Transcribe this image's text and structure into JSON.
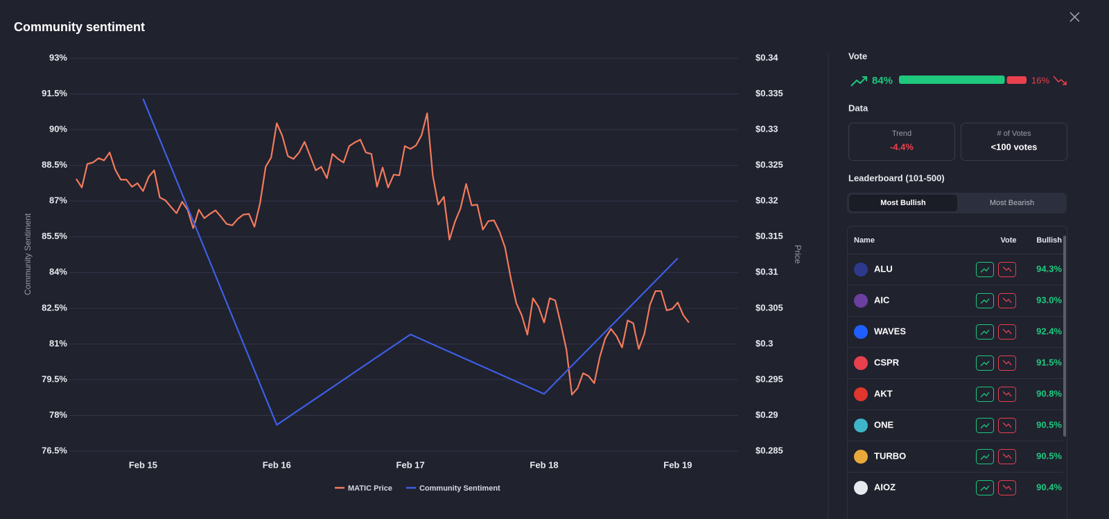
{
  "chart_data": {
    "type": "line",
    "title": "Community sentiment",
    "ylabel": "Community Sentiment",
    "y2label": "Price",
    "xlim": [
      14.5,
      19.4
    ],
    "xticks": [
      {
        "value": 15,
        "label": "Feb 15"
      },
      {
        "value": 16,
        "label": "Feb 16"
      },
      {
        "value": 17,
        "label": "Feb 17"
      },
      {
        "value": 18,
        "label": "Feb 18"
      },
      {
        "value": 19,
        "label": "Feb 19"
      }
    ],
    "ylim": [
      76.5,
      93
    ],
    "yticks": [
      {
        "value": 93,
        "label": "93%"
      },
      {
        "value": 91.5,
        "label": "91.5%"
      },
      {
        "value": 90,
        "label": "90%"
      },
      {
        "value": 88.5,
        "label": "88.5%"
      },
      {
        "value": 87,
        "label": "87%"
      },
      {
        "value": 85.5,
        "label": "85.5%"
      },
      {
        "value": 84,
        "label": "84%"
      },
      {
        "value": 82.5,
        "label": "82.5%"
      },
      {
        "value": 81,
        "label": "81%"
      },
      {
        "value": 79.5,
        "label": "79.5%"
      },
      {
        "value": 78,
        "label": "78%"
      },
      {
        "value": 76.5,
        "label": "76.5%"
      }
    ],
    "y2lim": [
      0.285,
      0.34
    ],
    "y2ticks": [
      {
        "value": 0.34,
        "label": "$0.34"
      },
      {
        "value": 0.335,
        "label": "$0.335"
      },
      {
        "value": 0.33,
        "label": "$0.33"
      },
      {
        "value": 0.325,
        "label": "$0.325"
      },
      {
        "value": 0.32,
        "label": "$0.32"
      },
      {
        "value": 0.315,
        "label": "$0.315"
      },
      {
        "value": 0.31,
        "label": "$0.31"
      },
      {
        "value": 0.305,
        "label": "$0.305"
      },
      {
        "value": 0.3,
        "label": "$0.3"
      },
      {
        "value": 0.295,
        "label": "$0.295"
      },
      {
        "value": 0.29,
        "label": "$0.29"
      },
      {
        "value": 0.285,
        "label": "$0.285"
      }
    ],
    "grid": true,
    "legend": "bottom",
    "series": [
      {
        "name": "MATIC Price",
        "color": "#f47b5c",
        "axis": "y2",
        "x": [
          14.5,
          14.542,
          14.583,
          14.625,
          14.667,
          14.708,
          14.75,
          14.792,
          14.833,
          14.875,
          14.917,
          14.958,
          15,
          15.042,
          15.083,
          15.125,
          15.167,
          15.208,
          15.25,
          15.292,
          15.333,
          15.375,
          15.417,
          15.458,
          15.5,
          15.542,
          15.583,
          15.625,
          15.667,
          15.708,
          15.75,
          15.792,
          15.833,
          15.875,
          15.917,
          15.958,
          16,
          16.042,
          16.083,
          16.125,
          16.167,
          16.208,
          16.25,
          16.292,
          16.333,
          16.375,
          16.417,
          16.458,
          16.5,
          16.542,
          16.583,
          16.625,
          16.667,
          16.708,
          16.75,
          16.792,
          16.833,
          16.875,
          16.917,
          16.958,
          17,
          17.042,
          17.083,
          17.125,
          17.167,
          17.208,
          17.25,
          17.292,
          17.333,
          17.375,
          17.417,
          17.458,
          17.5,
          17.542,
          17.583,
          17.625,
          17.667,
          17.708,
          17.75,
          17.792,
          17.833,
          17.875,
          17.917,
          17.958,
          18,
          18.042,
          18.083,
          18.125,
          18.167,
          18.208,
          18.25,
          18.292,
          18.333,
          18.375,
          18.417,
          18.458,
          18.5,
          18.542,
          18.583,
          18.625,
          18.667,
          18.708,
          18.75,
          18.792,
          18.833,
          18.875,
          18.917,
          18.958,
          19,
          19.042,
          19.083
        ],
        "values": [
          0.3231,
          0.3219,
          0.3252,
          0.3254,
          0.326,
          0.3257,
          0.3268,
          0.3244,
          0.323,
          0.323,
          0.322,
          0.3225,
          0.3214,
          0.3234,
          0.3243,
          0.3205,
          0.3201,
          0.3192,
          0.3183,
          0.3199,
          0.3188,
          0.3162,
          0.3188,
          0.3176,
          0.3182,
          0.3187,
          0.3178,
          0.3168,
          0.3166,
          0.3175,
          0.3181,
          0.3182,
          0.3164,
          0.3197,
          0.3248,
          0.3261,
          0.3309,
          0.3291,
          0.3263,
          0.3259,
          0.3268,
          0.3283,
          0.3263,
          0.3243,
          0.3248,
          0.3232,
          0.3266,
          0.3259,
          0.3254,
          0.3277,
          0.3282,
          0.3286,
          0.3268,
          0.3266,
          0.322,
          0.3247,
          0.3219,
          0.3237,
          0.3236,
          0.3277,
          0.3273,
          0.3278,
          0.3292,
          0.3323,
          0.3236,
          0.3195,
          0.3206,
          0.3146,
          0.3171,
          0.319,
          0.3224,
          0.3194,
          0.3195,
          0.316,
          0.3172,
          0.3173,
          0.3157,
          0.3135,
          0.3093,
          0.3057,
          0.304,
          0.3013,
          0.3064,
          0.3052,
          0.303,
          0.3064,
          0.3061,
          0.3028,
          0.2992,
          0.2929,
          0.2938,
          0.2959,
          0.2955,
          0.2945,
          0.2982,
          0.3008,
          0.3021,
          0.3011,
          0.2995,
          0.3033,
          0.3029,
          0.2993,
          0.3014,
          0.3055,
          0.3074,
          0.3074,
          0.3047,
          0.3049,
          0.3058,
          0.304,
          0.303
        ]
      },
      {
        "name": "Community Sentiment",
        "color": "#3d5fe6",
        "x": [
          15,
          16,
          17,
          18,
          19
        ],
        "values": [
          91.3,
          77.6,
          81.4,
          78.9,
          84.6
        ]
      }
    ]
  },
  "vote": {
    "title": "Vote",
    "values": [
      84,
      16
    ],
    "value_labels": [
      "84%",
      "16%"
    ],
    "colors": [
      "#1ec97e",
      "#e8414d"
    ]
  },
  "data_panel": {
    "title": "Data",
    "cards": [
      {
        "label": "Trend",
        "value": "-4.4%"
      },
      {
        "label": "# of Votes",
        "value": "<100 votes"
      }
    ]
  },
  "leaderboard": {
    "title": "Leaderboard (101-500)",
    "tabs": [
      "Most Bullish",
      "Most Bearish"
    ],
    "columns": [
      "Name",
      "Vote",
      "Bullish"
    ],
    "rows": [
      [
        "ALU",
        "94.3%"
      ],
      [
        "AIC",
        "93.0%"
      ],
      [
        "WAVES",
        "92.4%"
      ],
      [
        "CSPR",
        "91.5%"
      ],
      [
        "AKT",
        "90.8%"
      ],
      [
        "ONE",
        "90.5%"
      ],
      [
        "TURBO",
        "90.5%"
      ],
      [
        "AIOZ",
        "90.4%"
      ]
    ]
  }
}
